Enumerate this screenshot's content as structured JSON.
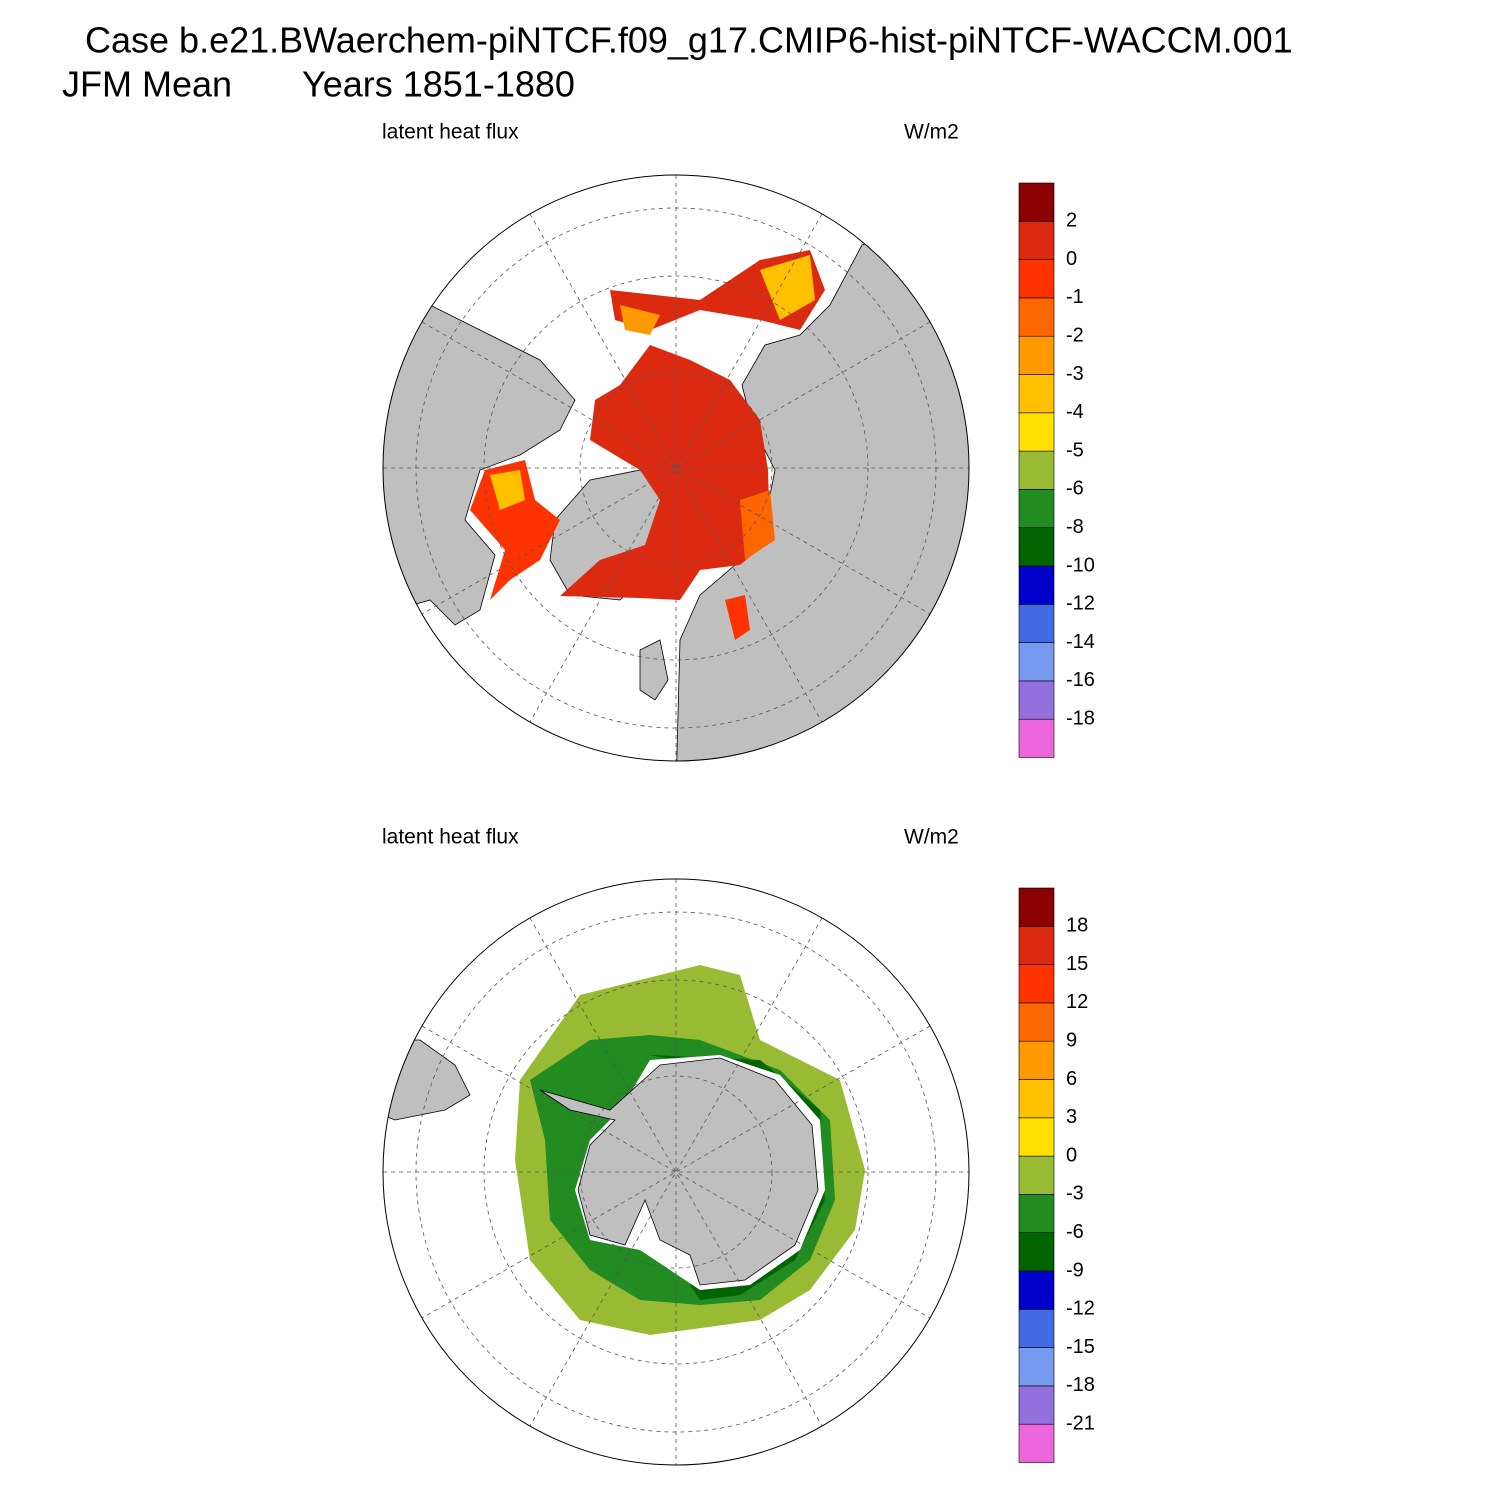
{
  "header": {
    "title": "Case b.e21.BWaerchem-piNTCF.f09_g17.CMIP6-hist-piNTCF-WACCM.001",
    "season": "JFM Mean",
    "years": "Years 1851-1880"
  },
  "panels": [
    {
      "left_label": "latent heat flux",
      "right_label": "W/m2",
      "colorbar": {
        "colors": [
          "#ee66dd",
          "#9370db",
          "#7799ee",
          "#4169e1",
          "#0000cd",
          "#006400",
          "#228b22",
          "#99bb33",
          "#ffe000",
          "#ffc000",
          "#ff9900",
          "#ff6600",
          "#ff3300",
          "#dc2a10",
          "#8b0000"
        ],
        "labels": [
          -18,
          -16,
          -14,
          -12,
          -10,
          -8,
          -6,
          -5,
          -4,
          -3,
          -2,
          -1,
          0,
          2
        ]
      }
    },
    {
      "left_label": "latent heat flux",
      "right_label": "W/m2",
      "colorbar": {
        "colors": [
          "#ee66dd",
          "#9370db",
          "#7799ee",
          "#4169e1",
          "#0000cd",
          "#006400",
          "#228b22",
          "#99bb33",
          "#ffe000",
          "#ffc000",
          "#ff9900",
          "#ff6600",
          "#ff3300",
          "#dc2a10",
          "#8b0000"
        ],
        "labels": [
          -21,
          -18,
          -15,
          -12,
          -9,
          -6,
          -3,
          0,
          3,
          6,
          9,
          12,
          15,
          18
        ]
      }
    }
  ]
}
